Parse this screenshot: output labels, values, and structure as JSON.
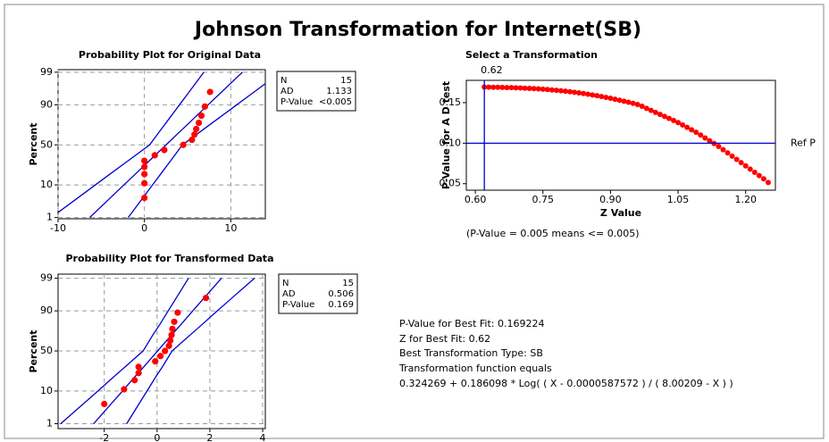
{
  "title": "Johnson Transformation for Internet(SB)",
  "chart_data": [
    {
      "type": "probability",
      "title": "Probability Plot for Original Data",
      "ylabel": "Percent",
      "yscale": "probability",
      "grid": true,
      "color": "#ff0000",
      "line_color": "#0000cc",
      "x": [
        0,
        0,
        0,
        0,
        0,
        1.2,
        2.3,
        4.5,
        5.5,
        5.8,
        6.0,
        6.3,
        6.6,
        7.0,
        7.6
      ],
      "values": [
        4.5,
        11.0,
        17.5,
        24.0,
        30.5,
        37.0,
        43.5,
        50.0,
        56.5,
        63.0,
        69.5,
        76.0,
        82.5,
        89.0,
        95.5
      ],
      "band_percents": [
        1,
        5,
        10,
        20,
        30,
        50,
        70,
        80,
        90,
        95,
        99
      ],
      "fit_x": [
        -6.34,
        -3.75,
        -2.37,
        -0.7,
        0.51,
        2.5,
        4.49,
        5.7,
        7.37,
        8.75,
        11.34
      ],
      "lower_x": [
        -10.8,
        -7.46,
        -5.68,
        -3.53,
        -1.97,
        0.6,
        2.01,
        2.87,
        4.06,
        5.04,
        6.88
      ],
      "upper_x": [
        -1.88,
        -0.04,
        0.94,
        2.13,
        2.99,
        4.4,
        6.97,
        8.53,
        10.68,
        12.46,
        15.8
      ],
      "xlim": [
        -10,
        14
      ],
      "xticks": [
        -10,
        0,
        10
      ],
      "ylim": [
        0.9,
        99.2
      ],
      "yticks": [
        1,
        10,
        50,
        90,
        99
      ],
      "stats": [
        {
          "label": "N",
          "value": 15
        },
        {
          "label": "AD",
          "value": 1.133
        },
        {
          "label": "P-Value",
          "value": "<0.005"
        }
      ]
    },
    {
      "type": "probability",
      "title": "Probability Plot for Transformed Data",
      "ylabel": "Percent",
      "yscale": "probability",
      "grid": true,
      "color": "#ff0000",
      "line_color": "#0000cc",
      "x": [
        -2.0,
        -1.25,
        -0.85,
        -0.7,
        -0.7,
        -0.07,
        0.13,
        0.3,
        0.45,
        0.5,
        0.55,
        0.58,
        0.65,
        0.78,
        1.85
      ],
      "values": [
        4.5,
        11.0,
        17.5,
        24.0,
        30.5,
        37.0,
        43.5,
        50.0,
        56.5,
        63.0,
        69.5,
        76.0,
        82.5,
        89.0,
        95.5
      ],
      "band_percents": [
        1,
        5,
        10,
        20,
        30,
        50,
        70,
        80,
        90,
        95,
        99
      ],
      "fit_x": [
        -2.4,
        -1.69,
        -1.31,
        -0.86,
        -0.52,
        0.02,
        0.56,
        0.9,
        1.35,
        1.73,
        2.44
      ],
      "lower_x": [
        -3.65,
        -2.73,
        -2.24,
        -1.66,
        -1.23,
        -0.53,
        -0.15,
        0.1,
        0.42,
        0.69,
        1.19
      ],
      "upper_x": [
        -1.15,
        -0.65,
        -0.38,
        -0.06,
        0.19,
        0.57,
        1.27,
        1.7,
        2.28,
        2.77,
        3.69
      ],
      "xlim": [
        -3.75,
        4.1
      ],
      "xticks": [
        -2,
        0,
        2,
        4
      ],
      "ylim": [
        0.65,
        99.3
      ],
      "yticks": [
        1,
        10,
        50,
        90,
        99
      ],
      "stats": [
        {
          "label": "N",
          "value": 15
        },
        {
          "label": "AD",
          "value": 0.506
        },
        {
          "label": "P-Value",
          "value": 0.169
        }
      ]
    },
    {
      "type": "scatter",
      "title": "Select a Transformation",
      "xlabel": "Z Value",
      "ylabel": "P-Value for A D test",
      "color": "#ff0000",
      "line_color": "#0000cc",
      "vline": 0.62,
      "ref_line": {
        "value": 0.1,
        "label": "Ref P"
      },
      "note": "(P-Value = 0.005 means <= 0.005)",
      "x": [
        0.62,
        0.63,
        0.64,
        0.65,
        0.66,
        0.67,
        0.68,
        0.69,
        0.7,
        0.71,
        0.72,
        0.73,
        0.74,
        0.75,
        0.76,
        0.77,
        0.78,
        0.79,
        0.8,
        0.81,
        0.82,
        0.83,
        0.84,
        0.85,
        0.86,
        0.87,
        0.88,
        0.89,
        0.9,
        0.91,
        0.92,
        0.93,
        0.94,
        0.95,
        0.96,
        0.97,
        0.98,
        0.99,
        1.0,
        1.01,
        1.02,
        1.03,
        1.04,
        1.05,
        1.06,
        1.07,
        1.08,
        1.09,
        1.1,
        1.11,
        1.12,
        1.13,
        1.14,
        1.15,
        1.16,
        1.17,
        1.18,
        1.19,
        1.2,
        1.21,
        1.22,
        1.23,
        1.24,
        1.25
      ],
      "values": [
        0.1692,
        0.1691,
        0.169,
        0.1689,
        0.1688,
        0.1686,
        0.1685,
        0.1683,
        0.1681,
        0.1679,
        0.1676,
        0.1673,
        0.167,
        0.1666,
        0.1662,
        0.1657,
        0.1652,
        0.1647,
        0.1641,
        0.1635,
        0.1628,
        0.1621,
        0.1613,
        0.1604,
        0.1595,
        0.1586,
        0.1576,
        0.1565,
        0.1554,
        0.1542,
        0.153,
        0.1518,
        0.1505,
        0.1492,
        0.1478,
        0.1455,
        0.143,
        0.1405,
        0.138,
        0.1355,
        0.133,
        0.1305,
        0.128,
        0.1255,
        0.1225,
        0.1195,
        0.1165,
        0.1135,
        0.11,
        0.1065,
        0.103,
        0.0995,
        0.096,
        0.092,
        0.088,
        0.084,
        0.08,
        0.076,
        0.072,
        0.068,
        0.064,
        0.06,
        0.056,
        0.0515
      ],
      "xlim": [
        0.58,
        1.266
      ],
      "xticks": [
        {
          "value": 0.6,
          "label": "0.60"
        },
        0.75,
        {
          "value": 0.9,
          "label": "0.90"
        },
        1.05,
        {
          "value": 1.2,
          "label": "1.20"
        }
      ],
      "ylim": [
        0.042,
        0.1775
      ],
      "yticks": [
        0.05,
        {
          "value": 0.1,
          "label": "0.10"
        },
        0.15
      ]
    }
  ],
  "summary": [
    "P-Value for Best Fit: 0.169224",
    "Z for Best Fit: 0.62",
    "Best Transformation Type: SB",
    "Transformation function equals",
    "0.324269 + 0.186098 * Log( ( X - 0.0000587572 ) / ( 8.00209 - X ) )"
  ]
}
